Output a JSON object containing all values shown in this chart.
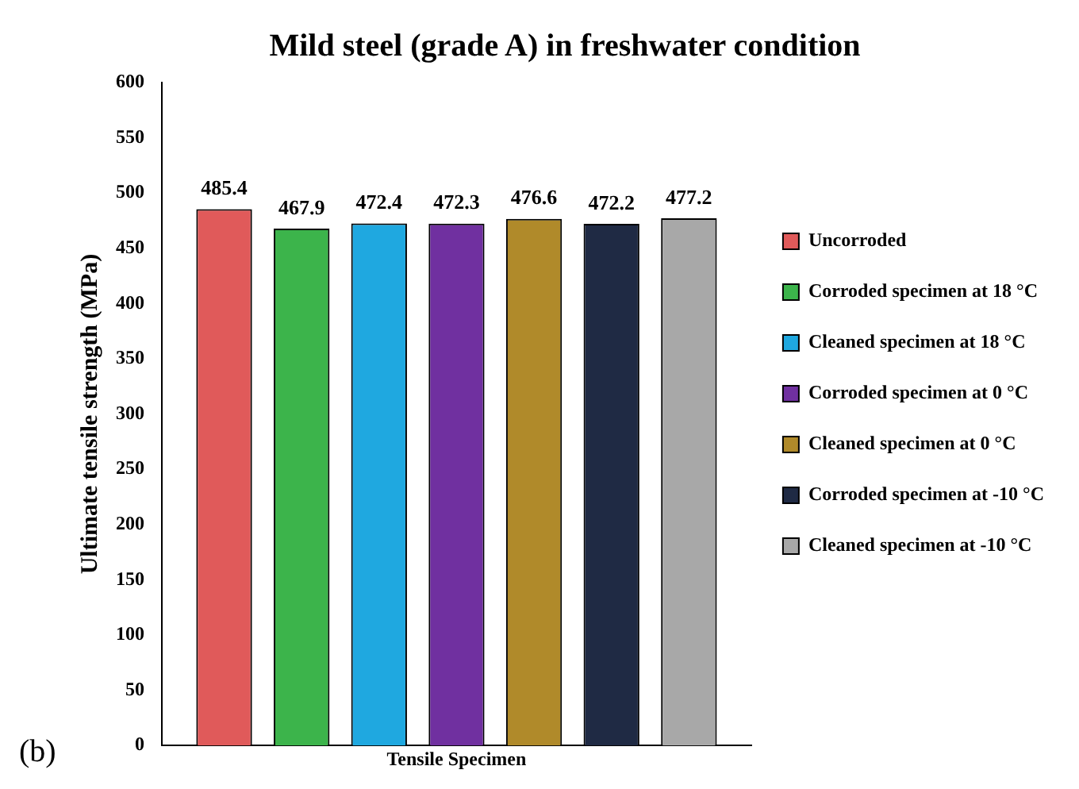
{
  "chart_data": {
    "type": "bar",
    "title": "Mild steel (grade A) in freshwater condition",
    "xlabel": "Tensile Specimen",
    "ylabel": "Ultimate tensile strength (MPa)",
    "categories": [
      null
    ],
    "series": [
      {
        "name": "Uncorroded",
        "color": "#e05a5a",
        "values": [
          485.4
        ]
      },
      {
        "name": "Corroded specimen at 18 °C",
        "color": "#3cb44b",
        "values": [
          467.9
        ]
      },
      {
        "name": "Cleaned specimen at 18 °C",
        "color": "#1fa8e0",
        "values": [
          472.4
        ]
      },
      {
        "name": "Corroded specimen at 0 °C",
        "color": "#7030a0",
        "values": [
          472.3
        ]
      },
      {
        "name": "Cleaned specimen at 0 °C",
        "color": "#b08a2a",
        "values": [
          476.6
        ]
      },
      {
        "name": "Corroded specimen at -10 °C",
        "color": "#1f2a44",
        "values": [
          472.2
        ]
      },
      {
        "name": "Cleaned specimen at -10 °C",
        "color": "#a8a8a8",
        "values": [
          477.2
        ]
      }
    ],
    "ylim": [
      0,
      600
    ],
    "yticks": [
      0,
      50,
      100,
      150,
      200,
      250,
      300,
      350,
      400,
      450,
      500,
      550,
      600
    ],
    "grid": false,
    "legend": "right",
    "data_labels": true,
    "annotations": [
      "(b)"
    ]
  }
}
